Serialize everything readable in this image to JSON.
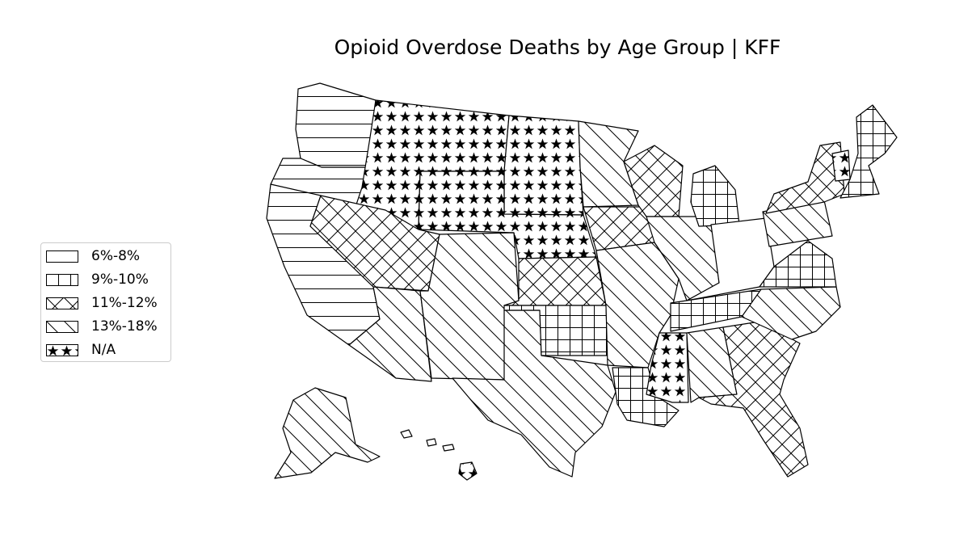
{
  "title": "Opioid Overdose Deaths by Age Group | KFF",
  "legend": {
    "items": [
      {
        "label": "6%-8%",
        "pattern": "none"
      },
      {
        "label": "9%-10%",
        "pattern": "grid"
      },
      {
        "label": "11%-12%",
        "pattern": "crosshatch"
      },
      {
        "label": "13%-18%",
        "pattern": "backslash"
      },
      {
        "label": "N/A",
        "pattern": "stars"
      }
    ]
  },
  "chart_data": {
    "type": "choropleth",
    "region": "United States",
    "title": "Opioid Overdose Deaths by Age Group | KFF",
    "legend_placement": "center-left",
    "categories": [
      "6%-8%",
      "9%-10%",
      "11%-12%",
      "13%-18%",
      "N/A"
    ],
    "states": {
      "Washington": "6%-8%",
      "Oregon": "6%-8%",
      "California": "6%-8%",
      "Montana": "N/A",
      "Idaho": "N/A",
      "Wyoming": "N/A",
      "North Dakota": "N/A",
      "South Dakota": "N/A",
      "Nebraska": "N/A",
      "Mississippi": "N/A",
      "Vermont": "N/A",
      "Nevada": "11%-12%",
      "Utah": "11%-12%",
      "Kansas": "11%-12%",
      "Iowa": "11%-12%",
      "Wisconsin": "11%-12%",
      "Georgia": "11%-12%",
      "Florida": "11%-12%",
      "New York": "11%-12%",
      "Arizona": "13%-18%",
      "Colorado": "13%-18%",
      "New Mexico": "13%-18%",
      "Texas": "13%-18%",
      "Minnesota": "13%-18%",
      "Missouri": "13%-18%",
      "Arkansas": "13%-18%",
      "Illinois": "13%-18%",
      "Indiana": "13%-18%",
      "Alabama": "13%-18%",
      "North Carolina": "13%-18%",
      "South Carolina": "13%-18%",
      "Pennsylvania": "13%-18%",
      "Alaska": "13%-18%",
      "Oklahoma": "9%-10%",
      "Louisiana": "9%-10%",
      "Michigan": "9%-10%",
      "Tennessee": "9%-10%",
      "Virginia": "9%-10%",
      "Maine": "9%-10%",
      "Massachusetts": "9%-10%",
      "Hawaii": "N/A",
      "Ohio": "6%-8%",
      "Kentucky": "6%-8%",
      "West Virginia": "6%-8%",
      "New Hampshire": "6%-8%",
      "Connecticut": "6%-8%",
      "New Jersey": "11%-12%",
      "Maryland": "9%-10%",
      "Delaware": "11%-12%"
    }
  }
}
